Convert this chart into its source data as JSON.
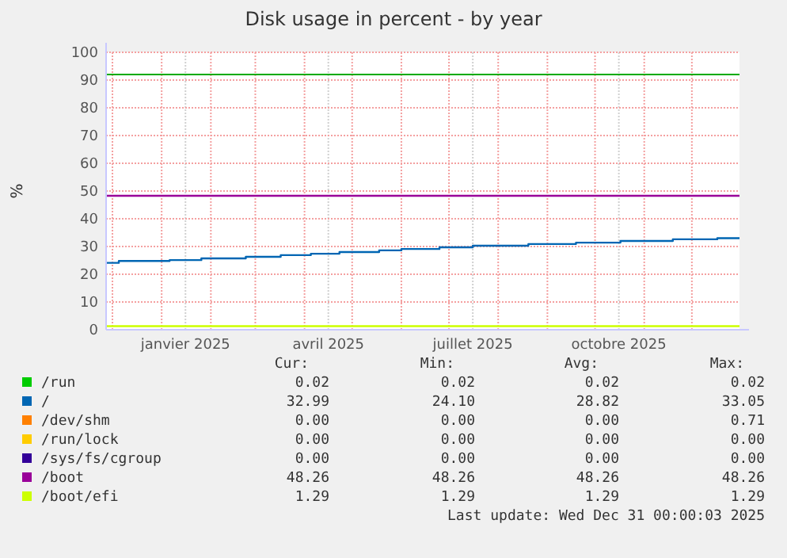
{
  "chart_data": {
    "type": "step",
    "title": "Disk usage in percent - by year",
    "ylabel": "%",
    "xlim": [
      "2024-11-27",
      "2025-12-31"
    ],
    "xticks": [
      {
        "value": "2024-12-01",
        "label": null
      },
      {
        "value": "2025-01-01",
        "label": null
      },
      {
        "value": "2025-01-16",
        "label": "janvier 2025"
      },
      {
        "value": "2025-02-01",
        "label": null
      },
      {
        "value": "2025-03-01",
        "label": null
      },
      {
        "value": "2025-04-01",
        "label": null
      },
      {
        "value": "2025-04-16",
        "label": "avril 2025"
      },
      {
        "value": "2025-05-01",
        "label": null
      },
      {
        "value": "2025-06-01",
        "label": null
      },
      {
        "value": "2025-07-01",
        "label": null
      },
      {
        "value": "2025-07-16",
        "label": "juillet 2025"
      },
      {
        "value": "2025-08-01",
        "label": null
      },
      {
        "value": "2025-09-01",
        "label": null
      },
      {
        "value": "2025-10-01",
        "label": null
      },
      {
        "value": "2025-10-16",
        "label": "octobre 2025"
      },
      {
        "value": "2025-11-01",
        "label": null
      },
      {
        "value": "2025-12-01",
        "label": null
      }
    ],
    "ylim": [
      0,
      100
    ],
    "yticks": [
      0,
      10,
      20,
      30,
      40,
      50,
      60,
      70,
      80,
      90,
      100
    ],
    "grid": true,
    "legend": "bottom",
    "marker": "none",
    "line_style": "solid",
    "ref_lines": [
      {
        "axis": "y",
        "value": 92,
        "color": "#00aa00"
      }
    ],
    "series": [
      {
        "name": "/run",
        "color": "#00cc00"
      },
      {
        "name": "/",
        "color": "#0066b3",
        "x": [
          "2024-11-27",
          "2024-12-05",
          "2025-01-06",
          "2025-01-26",
          "2025-02-23",
          "2025-03-17",
          "2025-04-05",
          "2025-04-23",
          "2025-05-18",
          "2025-06-01",
          "2025-06-25",
          "2025-07-16",
          "2025-08-20",
          "2025-09-19",
          "2025-10-17",
          "2025-11-19",
          "2025-12-17",
          "2025-12-31"
        ],
        "values": [
          24.1,
          24.8,
          25.1,
          25.7,
          26.3,
          26.9,
          27.4,
          28.0,
          28.6,
          29.1,
          29.7,
          30.3,
          30.9,
          31.4,
          32.0,
          32.6,
          33.0,
          33.0
        ]
      },
      {
        "name": "/dev/shm",
        "color": "#ff8000"
      },
      {
        "name": "/run/lock",
        "color": "#ffcc00"
      },
      {
        "name": "/sys/fs/cgroup",
        "color": "#330099"
      },
      {
        "name": "/boot",
        "color": "#990099",
        "x": [
          "2024-11-27",
          "2025-12-31"
        ],
        "values": [
          48.3,
          48.3
        ]
      },
      {
        "name": "/boot/efi",
        "color": "#ccff00",
        "x": [
          "2024-11-27",
          "2025-12-31"
        ],
        "values": [
          1.3,
          1.3
        ]
      }
    ],
    "annotations": [
      "Cur:",
      "Min:",
      "Avg:",
      "Max:",
      "0.02",
      "0.02",
      "0.02",
      "0.02",
      "32.99",
      "24.10",
      "28.82",
      "33.05",
      "0.00",
      "0.00",
      "0.00",
      "0.71",
      "0.00",
      "0.00",
      "0.00",
      "0.00",
      "0.00",
      "0.00",
      "0.00",
      "0.00",
      "48.26",
      "48.26",
      "48.26",
      "48.26",
      "1.29",
      "1.29",
      "1.29",
      "1.29",
      "Last update: Wed Dec 31 00:00:03 2025"
    ]
  }
}
